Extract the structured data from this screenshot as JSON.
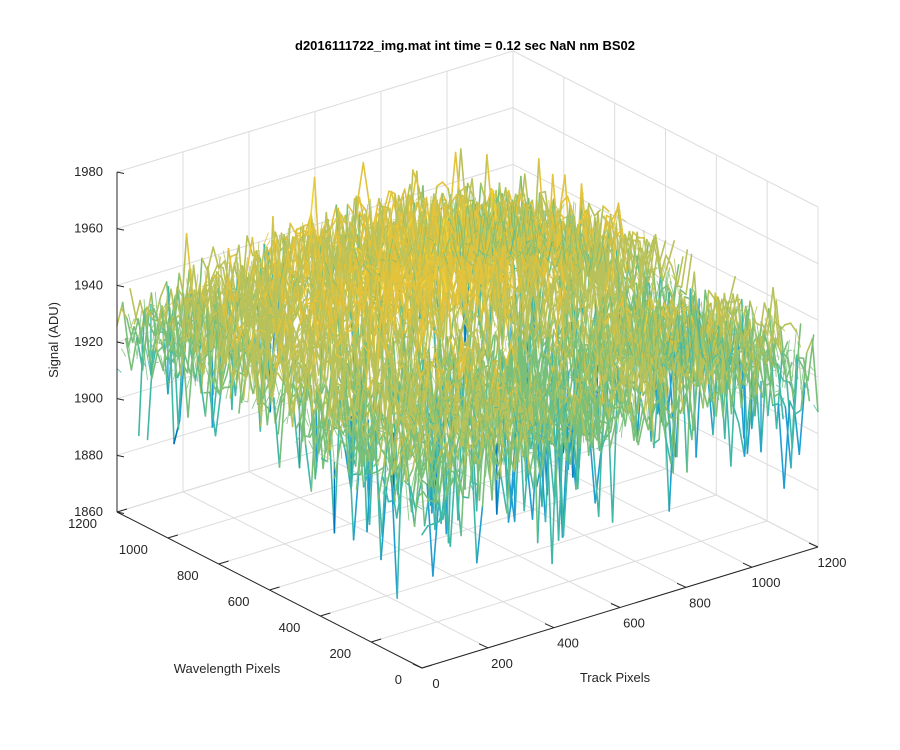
{
  "chart_data": {
    "type": "surface",
    "title": "d2016111722_img.mat int time = 0.12 sec  NaN nm BS02",
    "xlabel": "Track Pixels",
    "ylabel": "Wavelength Pixels",
    "zlabel": "Signal (ADU)",
    "xlim": [
      0,
      1200
    ],
    "ylim": [
      0,
      1200
    ],
    "zlim": [
      1860,
      1980
    ],
    "x_ticks": [
      "0",
      "200",
      "400",
      "600",
      "800",
      "1000",
      "1200"
    ],
    "y_ticks": [
      "0",
      "200",
      "400",
      "600",
      "800",
      "1000",
      "1200"
    ],
    "z_ticks": [
      "1860",
      "1880",
      "1900",
      "1920",
      "1940",
      "1960",
      "1980"
    ],
    "grid": true,
    "colormap": [
      "#0072bd",
      "#1f9ed2",
      "#3fb8a8",
      "#79bf7a",
      "#b9c25a",
      "#e3c33c",
      "#f2d330"
    ],
    "surface_summary": {
      "center_mean": 1945,
      "edge_mean": 1918,
      "valley_mean": 1910,
      "noise_amplitude": 30
    }
  }
}
